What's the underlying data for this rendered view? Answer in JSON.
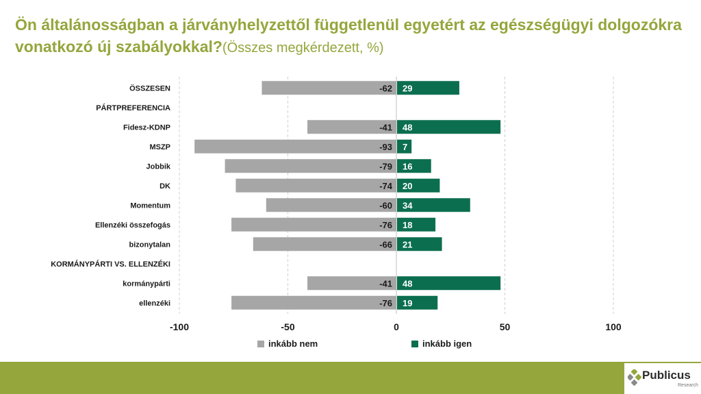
{
  "title": {
    "main": "Ön általánosságban a járványhelyzettől függetlenül egyetért az egészségügyi dolgozókra vonatkozó új szabályokkal?",
    "sub": "(Összes megkérdezett, %)"
  },
  "colors": {
    "title": "#94a63c",
    "nem": "#a6a6a6",
    "igen": "#0b6e4f",
    "band": "#94a63c"
  },
  "chart_data": {
    "type": "bar",
    "orientation": "horizontal-diverging",
    "categories": [
      "ÖSSZESEN",
      "PÁRTPREFERENCIA",
      "Fidesz-KDNP",
      "MSZP",
      "Jobbik",
      "DK",
      "Momentum",
      "Ellenzéki összefogás",
      "bizonytalan",
      "KORMÁNYPÁRTI VS. ELLENZÉKI",
      "kormánypárti",
      "ellenzéki"
    ],
    "series": [
      {
        "name": "inkább nem",
        "values": [
          -62,
          null,
          -41,
          -93,
          -79,
          -74,
          -60,
          -76,
          -66,
          null,
          -41,
          -76
        ]
      },
      {
        "name": "inkább igen",
        "values": [
          29,
          null,
          48,
          7,
          16,
          20,
          34,
          18,
          21,
          null,
          48,
          19
        ]
      }
    ],
    "xlim": [
      -100,
      100
    ],
    "xticks": [
      "-100",
      "-50",
      "0",
      "50",
      "100"
    ],
    "xtick_values": [
      -100,
      -50,
      0,
      50,
      100
    ],
    "grid": "vertical dashed",
    "legend": "bottom"
  },
  "logo": {
    "name": "Publicus",
    "sub": "Research"
  }
}
